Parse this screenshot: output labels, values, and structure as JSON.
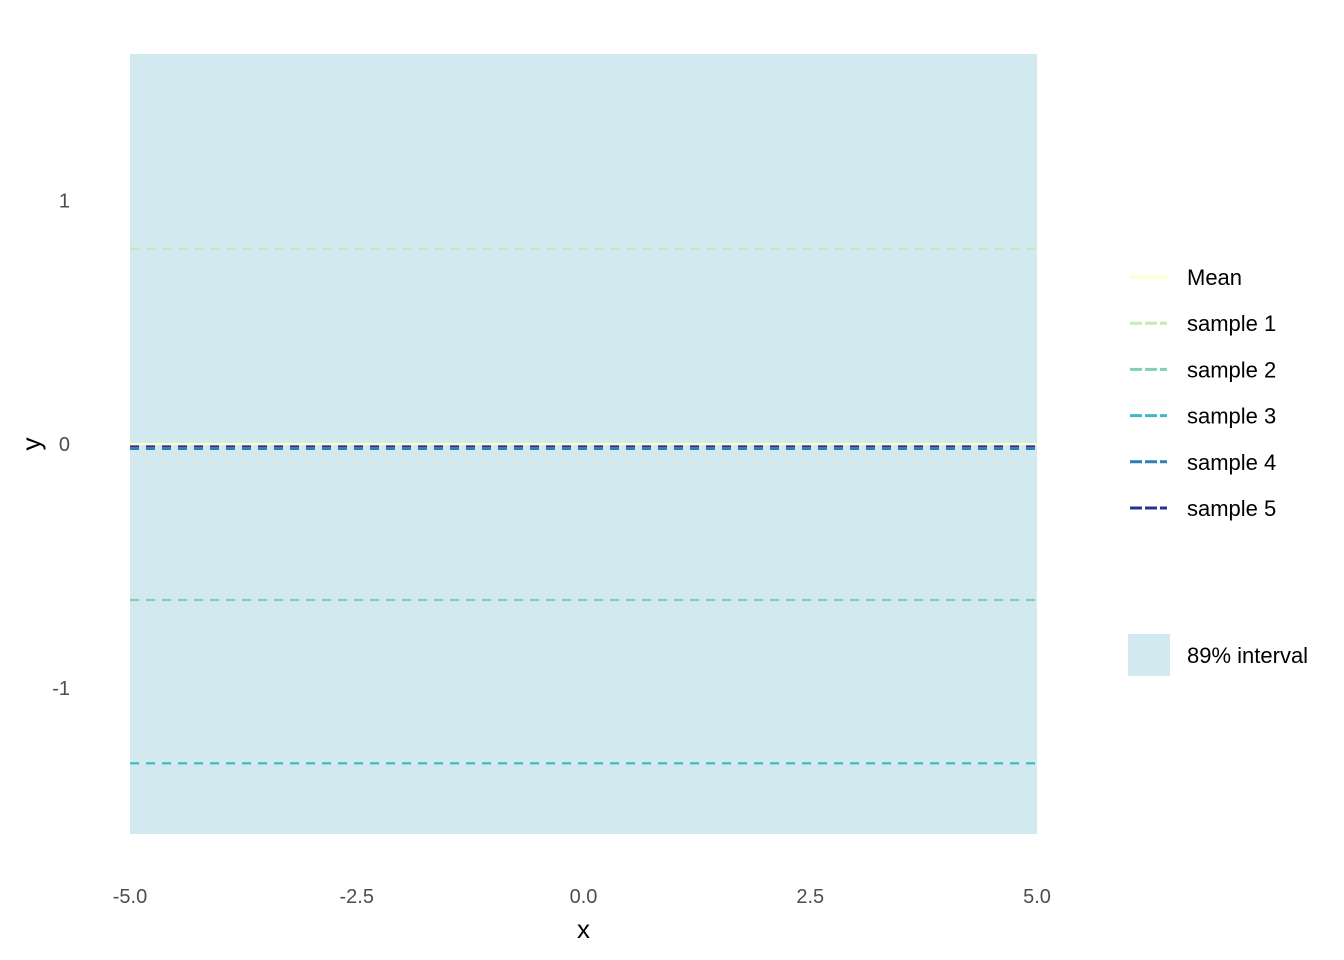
{
  "chart_data": {
    "type": "line",
    "xlabel": "x",
    "ylabel": "y",
    "xlim": [
      -5,
      5
    ],
    "ylim": [
      -1.6,
      1.6
    ],
    "x_ticks": [
      -5.0,
      -2.5,
      0.0,
      2.5,
      5.0
    ],
    "x_tick_labels": [
      "-5.0",
      "-2.5",
      "0.0",
      "2.5",
      "5.0"
    ],
    "y_ticks": [
      1,
      0,
      -1
    ],
    "y_tick_labels": [
      "1",
      "0",
      "-1"
    ],
    "grid": false,
    "legend_position": "right",
    "band": {
      "name": "89% interval",
      "x": [
        -5,
        5
      ],
      "lower": [
        -1.6,
        -1.6
      ],
      "upper": [
        1.6,
        1.6
      ],
      "color": "#d2eaef"
    },
    "series": [
      {
        "name": "Mean",
        "color": "#ffffcc",
        "dash": "solid",
        "x": [
          -5,
          -2.5,
          0,
          2.5,
          5
        ],
        "y": [
          0.0,
          0.0,
          0.0,
          0.0,
          0.0
        ]
      },
      {
        "name": "sample 1",
        "color": "#c7e9b4",
        "dash": "dashed",
        "x": [
          -5,
          -2.5,
          0,
          2.5,
          5
        ],
        "y": [
          0.8,
          0.8,
          0.8,
          0.8,
          0.8
        ]
      },
      {
        "name": "sample 2",
        "color": "#7fcdbb",
        "dash": "dashed",
        "x": [
          -5,
          -2.5,
          0,
          2.5,
          5
        ],
        "y": [
          -0.64,
          -0.64,
          -0.64,
          -0.64,
          -0.64
        ]
      },
      {
        "name": "sample 3",
        "color": "#41b6c4",
        "dash": "dashed",
        "x": [
          -5,
          -2.5,
          0,
          2.5,
          5
        ],
        "y": [
          -1.31,
          -1.31,
          -1.31,
          -1.31,
          -1.31
        ]
      },
      {
        "name": "sample 4",
        "color": "#2c7fb8",
        "dash": "dashed",
        "x": [
          -5,
          -2.5,
          0,
          2.5,
          5
        ],
        "y": [
          -0.02,
          -0.02,
          -0.02,
          -0.02,
          -0.02
        ]
      },
      {
        "name": "sample 5",
        "color": "#253494",
        "dash": "dashed",
        "x": [
          -5,
          -2.5,
          0,
          2.5,
          5
        ],
        "y": [
          -0.01,
          -0.01,
          -0.01,
          -0.01,
          -0.01
        ]
      }
    ]
  }
}
